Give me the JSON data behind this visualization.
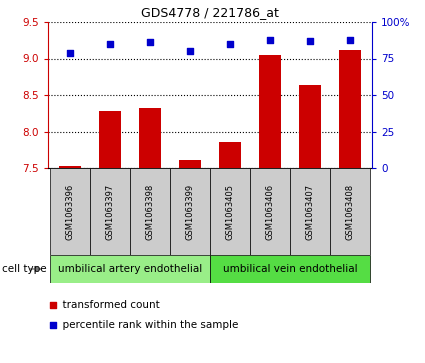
{
  "title": "GDS4778 / 221786_at",
  "samples": [
    "GSM1063396",
    "GSM1063397",
    "GSM1063398",
    "GSM1063399",
    "GSM1063405",
    "GSM1063406",
    "GSM1063407",
    "GSM1063408"
  ],
  "transformed_count": [
    7.53,
    8.28,
    8.32,
    7.61,
    7.85,
    9.05,
    8.64,
    9.12
  ],
  "percentile_rank": [
    79,
    85,
    86,
    80,
    85,
    88,
    87,
    88
  ],
  "ylim_left": [
    7.5,
    9.5
  ],
  "ylim_right": [
    0,
    100
  ],
  "yticks_left": [
    7.5,
    8.0,
    8.5,
    9.0,
    9.5
  ],
  "yticks_right": [
    0,
    25,
    50,
    75,
    100
  ],
  "ytick_right_labels": [
    "0",
    "25",
    "50",
    "75",
    "100%"
  ],
  "bar_color": "#cc0000",
  "dot_color": "#0000cc",
  "cell_types": [
    {
      "label": "umbilical artery endothelial",
      "indices": [
        0,
        1,
        2,
        3
      ],
      "color": "#99ee88"
    },
    {
      "label": "umbilical vein endothelial",
      "indices": [
        4,
        5,
        6,
        7
      ],
      "color": "#55dd44"
    }
  ],
  "cell_type_label": "cell type",
  "legend_red_label": "transformed count",
  "legend_blue_label": "percentile rank within the sample",
  "background_color": "#ffffff",
  "tick_color_left": "#cc0000",
  "tick_color_right": "#0000cc",
  "sample_box_color": "#cccccc"
}
